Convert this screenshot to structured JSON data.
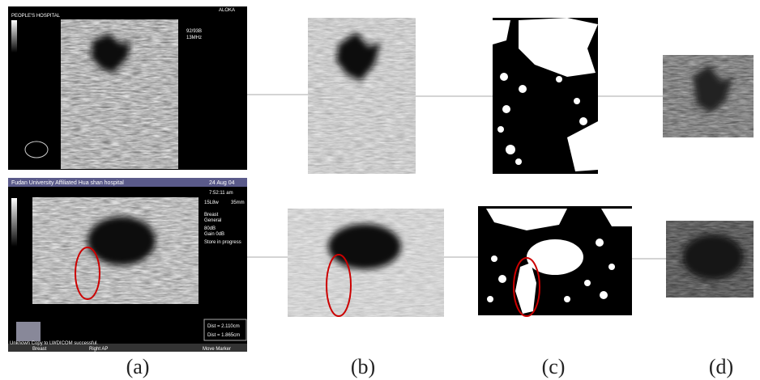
{
  "figure": {
    "captions": [
      "(a)",
      "(b)",
      "(c)",
      "(d)"
    ],
    "top_screen": {
      "hospital": "PEOPLE'S HOSPITAL",
      "brand": "ALOKA",
      "frame": "92/93B",
      "freq": "13MHz"
    },
    "bottom_screen": {
      "hospital": "Fudan University Affiliated Hua shan hospital",
      "date": "24 Aug 04",
      "time": "7:52:11 am",
      "probe": "15L8w",
      "depth": "35mm",
      "preset": "Breast",
      "mode": "General",
      "dynamic": "80dB",
      "gain": "Gain 0dB",
      "status": "Store in progress",
      "dist1": "Dist = 2.110cm",
      "dist2": "Dist = 1.865cm",
      "message": "Unknown Copy to LWDICOM successful.",
      "menu": [
        "Breast",
        "Right AP",
        "Move Marker"
      ]
    }
  }
}
